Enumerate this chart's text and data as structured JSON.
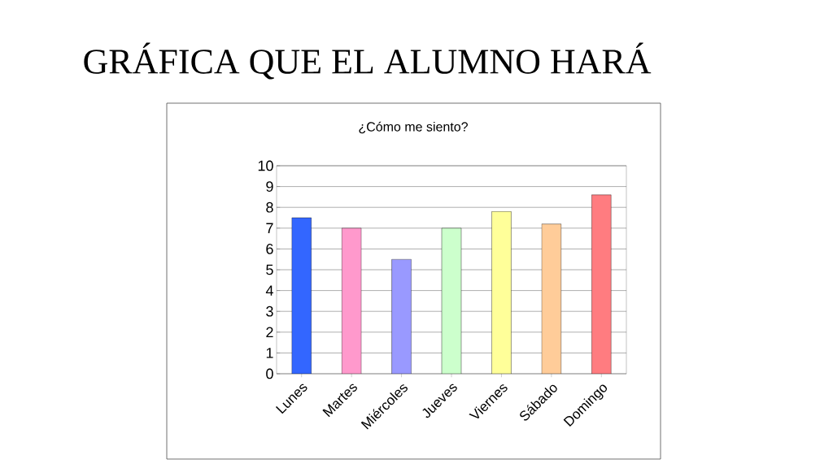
{
  "chart_data": {
    "type": "bar",
    "title": "GRÁFICA QUE EL ALUMNO HARÁ",
    "subtitle": "¿Cómo me siento?",
    "categories": [
      "Lunes",
      "Martes",
      "Miércoles",
      "Jueves",
      "Viernes",
      "Sábado",
      "Domingo"
    ],
    "values": [
      7.5,
      7,
      5.5,
      7,
      7.8,
      7.2,
      8.6
    ],
    "colors": [
      "#3366ff",
      "#ff99cc",
      "#9999ff",
      "#ccffcc",
      "#ffff99",
      "#ffcc99",
      "#ff7c80"
    ],
    "ylim": [
      0,
      10
    ],
    "yticks": [
      0,
      1,
      2,
      3,
      4,
      5,
      6,
      7,
      8,
      9,
      10
    ],
    "grid": "y"
  }
}
